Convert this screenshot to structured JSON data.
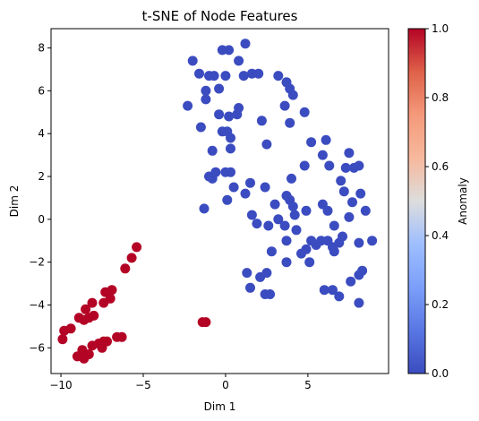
{
  "chart_data": {
    "type": "scatter",
    "title": "t-SNE of Node Features",
    "xlabel": "Dim 1",
    "ylabel": "Dim 2",
    "xlim": [
      -10.6,
      9.9
    ],
    "ylim": [
      -7.2,
      8.9
    ],
    "xticks": [
      -10,
      -5,
      0,
      5
    ],
    "yticks": [
      -6,
      -4,
      -2,
      0,
      2,
      4,
      6,
      8
    ],
    "grid": false,
    "colormap": "coolwarm",
    "colorbar": {
      "label": "Anomaly",
      "range": [
        0,
        1
      ],
      "ticks": [
        "0.0",
        "0.2",
        "0.4",
        "0.6",
        "0.8",
        "1.0"
      ],
      "low_color": "#3b4cc0",
      "mid_color": "#dddddd",
      "high_color": "#b40426"
    },
    "series": [
      {
        "anomaly": 0,
        "color": "#3b4cc0",
        "points": [
          [
            -2.3,
            5.3
          ],
          [
            -2.0,
            7.4
          ],
          [
            -1.6,
            6.8
          ],
          [
            -1.5,
            4.3
          ],
          [
            -1.2,
            6.0
          ],
          [
            -1.0,
            6.7
          ],
          [
            -1.2,
            5.6
          ],
          [
            -0.8,
            3.2
          ],
          [
            -0.7,
            6.7
          ],
          [
            -0.4,
            4.9
          ],
          [
            -0.4,
            6.1
          ],
          [
            -0.2,
            7.9
          ],
          [
            0.2,
            7.9
          ],
          [
            0.0,
            6.7
          ],
          [
            0.2,
            4.8
          ],
          [
            -0.2,
            4.1
          ],
          [
            0.1,
            4.1
          ],
          [
            0.3,
            3.8
          ],
          [
            0.3,
            3.3
          ],
          [
            0.7,
            4.9
          ],
          [
            0.8,
            5.2
          ],
          [
            1.2,
            8.2
          ],
          [
            0.8,
            7.4
          ],
          [
            1.1,
            6.7
          ],
          [
            1.6,
            6.8
          ],
          [
            2.0,
            6.8
          ],
          [
            2.2,
            4.6
          ],
          [
            2.5,
            3.5
          ],
          [
            3.2,
            6.7
          ],
          [
            3.7,
            6.4
          ],
          [
            3.9,
            6.1
          ],
          [
            4.1,
            5.8
          ],
          [
            3.6,
            5.3
          ],
          [
            4.8,
            5.0
          ],
          [
            3.9,
            4.5
          ],
          [
            5.2,
            3.6
          ],
          [
            6.1,
            3.7
          ],
          [
            5.9,
            3.0
          ],
          [
            6.3,
            2.5
          ],
          [
            7.5,
            3.1
          ],
          [
            7.8,
            2.4
          ],
          [
            4.8,
            2.5
          ],
          [
            8.1,
            2.5
          ],
          [
            7.3,
            2.4
          ],
          [
            -0.8,
            1.9
          ],
          [
            -1.0,
            2.0
          ],
          [
            -0.6,
            2.2
          ],
          [
            0.0,
            2.2
          ],
          [
            0.3,
            2.2
          ],
          [
            0.5,
            1.5
          ],
          [
            0.1,
            0.9
          ],
          [
            1.2,
            1.2
          ],
          [
            1.5,
            1.7
          ],
          [
            2.4,
            1.5
          ],
          [
            -1.3,
            0.5
          ],
          [
            1.6,
            0.2
          ],
          [
            1.9,
            -0.2
          ],
          [
            2.6,
            -0.3
          ],
          [
            3.0,
            0.7
          ],
          [
            3.7,
            1.1
          ],
          [
            4.0,
            1.9
          ],
          [
            3.9,
            0.9
          ],
          [
            4.1,
            0.6
          ],
          [
            4.3,
            -0.5
          ],
          [
            3.6,
            -0.3
          ],
          [
            3.2,
            0.0
          ],
          [
            4.2,
            0.2
          ],
          [
            4.9,
            0.4
          ],
          [
            5.9,
            0.7
          ],
          [
            6.2,
            0.4
          ],
          [
            7.0,
            1.8
          ],
          [
            7.2,
            1.3
          ],
          [
            7.7,
            0.8
          ],
          [
            8.2,
            1.2
          ],
          [
            8.5,
            0.4
          ],
          [
            7.5,
            0.1
          ],
          [
            6.6,
            -0.3
          ],
          [
            5.8,
            -1.0
          ],
          [
            5.2,
            -1.0
          ],
          [
            3.7,
            -1.0
          ],
          [
            2.8,
            -1.5
          ],
          [
            4.6,
            -1.6
          ],
          [
            4.9,
            -1.4
          ],
          [
            5.5,
            -1.2
          ],
          [
            6.2,
            -1.0
          ],
          [
            6.9,
            -1.1
          ],
          [
            6.6,
            -1.5
          ],
          [
            7.1,
            -0.8
          ],
          [
            6.5,
            -1.3
          ],
          [
            8.1,
            -1.1
          ],
          [
            8.9,
            -1.0
          ],
          [
            3.7,
            -2.0
          ],
          [
            5.1,
            -2.0
          ],
          [
            8.3,
            -2.4
          ],
          [
            8.1,
            -2.6
          ],
          [
            7.6,
            -2.9
          ],
          [
            1.3,
            -2.5
          ],
          [
            2.1,
            -2.7
          ],
          [
            2.5,
            -2.5
          ],
          [
            1.5,
            -3.2
          ],
          [
            2.4,
            -3.5
          ],
          [
            2.7,
            -3.5
          ],
          [
            6.0,
            -3.3
          ],
          [
            6.5,
            -3.3
          ],
          [
            6.9,
            -3.6
          ],
          [
            8.1,
            -3.9
          ]
        ]
      },
      {
        "anomaly": 1,
        "color": "#b40426",
        "points": [
          [
            -5.4,
            -1.3
          ],
          [
            -5.7,
            -1.8
          ],
          [
            -6.1,
            -2.3
          ],
          [
            -6.9,
            -3.3
          ],
          [
            -7.3,
            -3.4
          ],
          [
            -7.0,
            -3.7
          ],
          [
            -7.4,
            -3.9
          ],
          [
            -8.1,
            -3.9
          ],
          [
            -8.5,
            -4.2
          ],
          [
            -8.0,
            -4.5
          ],
          [
            -8.3,
            -4.6
          ],
          [
            -8.6,
            -4.7
          ],
          [
            -8.9,
            -4.6
          ],
          [
            -9.4,
            -5.1
          ],
          [
            -9.8,
            -5.2
          ],
          [
            -9.9,
            -5.6
          ],
          [
            -7.4,
            -5.7
          ],
          [
            -7.2,
            -5.7
          ],
          [
            -6.6,
            -5.5
          ],
          [
            -6.3,
            -5.5
          ],
          [
            -7.7,
            -5.8
          ],
          [
            -7.5,
            -6.0
          ],
          [
            -8.1,
            -5.9
          ],
          [
            -8.7,
            -6.1
          ],
          [
            -9.0,
            -6.4
          ],
          [
            -8.6,
            -6.5
          ],
          [
            -8.3,
            -6.3
          ],
          [
            -1.4,
            -4.8
          ],
          [
            -1.2,
            -4.8
          ]
        ]
      }
    ]
  }
}
